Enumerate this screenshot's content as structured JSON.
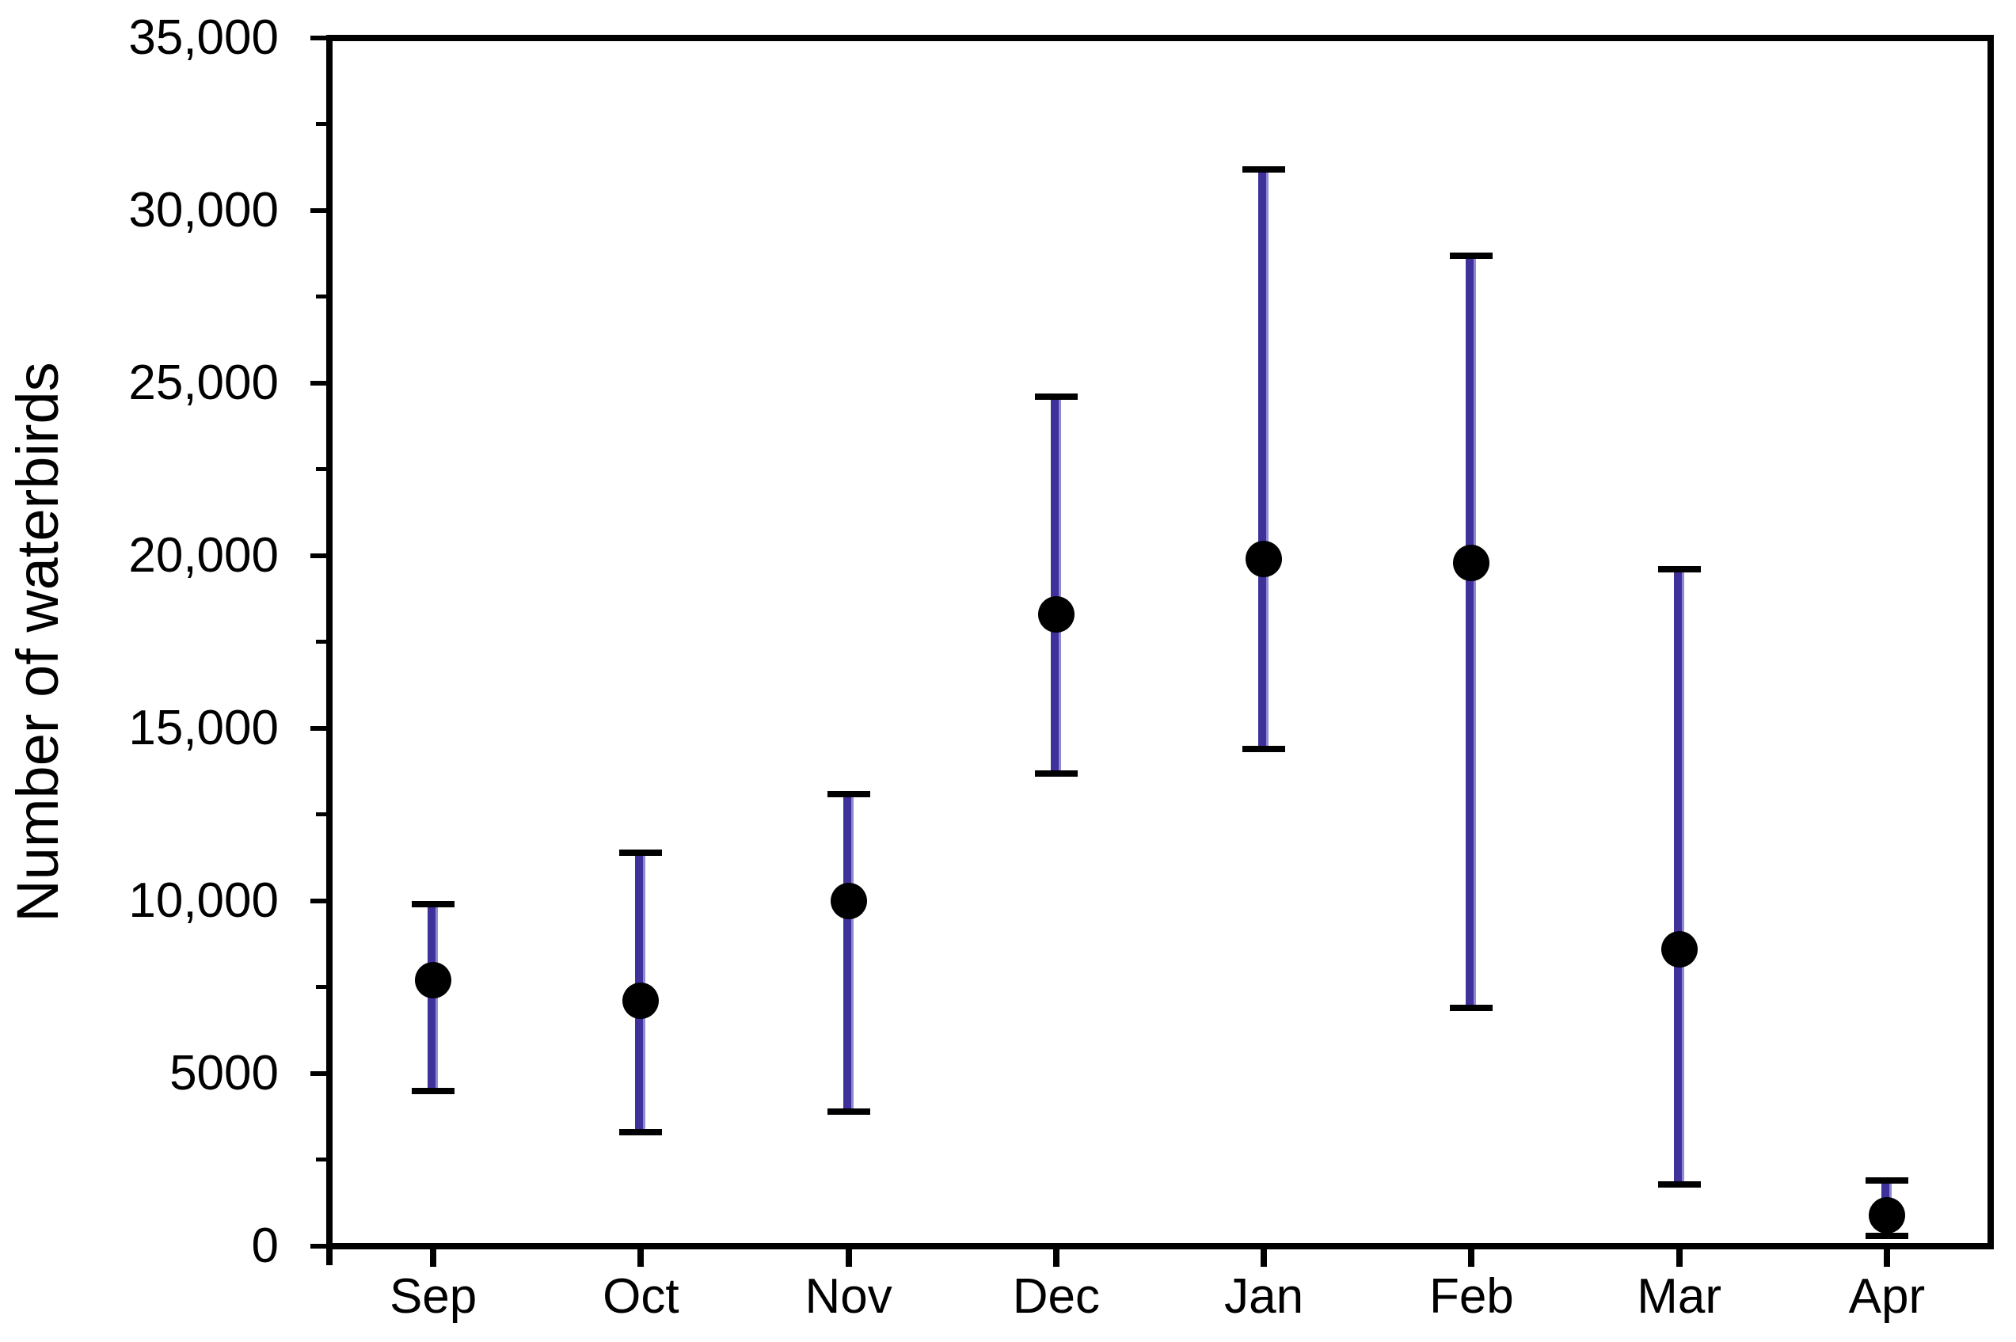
{
  "chart_data": {
    "type": "scatter",
    "subtype": "errorbar",
    "title": "",
    "xlabel": "",
    "ylabel": "Number of waterbirds",
    "categories": [
      "Sep",
      "Oct",
      "Nov",
      "Dec",
      "Jan",
      "Feb",
      "Mar",
      "Apr"
    ],
    "series": [
      {
        "name": "Number of waterbirds",
        "points": [
          {
            "month": "Sep",
            "mean": 7700,
            "upper": 9900,
            "lower": 4500
          },
          {
            "month": "Oct",
            "mean": 7100,
            "upper": 11400,
            "lower": 3300
          },
          {
            "month": "Nov",
            "mean": 10000,
            "upper": 13100,
            "lower": 3900
          },
          {
            "month": "Dec",
            "mean": 18300,
            "upper": 24600,
            "lower": 13700
          },
          {
            "month": "Jan",
            "mean": 19900,
            "upper": 31200,
            "lower": 14400
          },
          {
            "month": "Feb",
            "mean": 19800,
            "upper": 28700,
            "lower": 6900
          },
          {
            "month": "Mar",
            "mean": 8600,
            "upper": 19600,
            "lower": 1800
          },
          {
            "month": "Apr",
            "mean": 900,
            "upper": 1900,
            "lower": 300
          }
        ]
      }
    ],
    "ylim": [
      0,
      35000
    ],
    "y_major_ticks": [
      0,
      5000,
      10000,
      15000,
      20000,
      25000,
      30000,
      35000
    ],
    "y_tick_labels": [
      "0",
      "5000",
      "10,000",
      "15,000",
      "20,000",
      "25,000",
      "30,000",
      "35,000"
    ],
    "y_minor_ticks": [
      2500,
      7500,
      12500,
      17500,
      22500,
      27500,
      32500
    ],
    "grid": false,
    "legend": false,
    "marker_color": "#000000",
    "errorbar_color": "#3e3199",
    "errorbar_edge_color": "#9089d8",
    "cap_color": "#000000",
    "frame_color": "#000000",
    "background_color": "#ffffff"
  }
}
